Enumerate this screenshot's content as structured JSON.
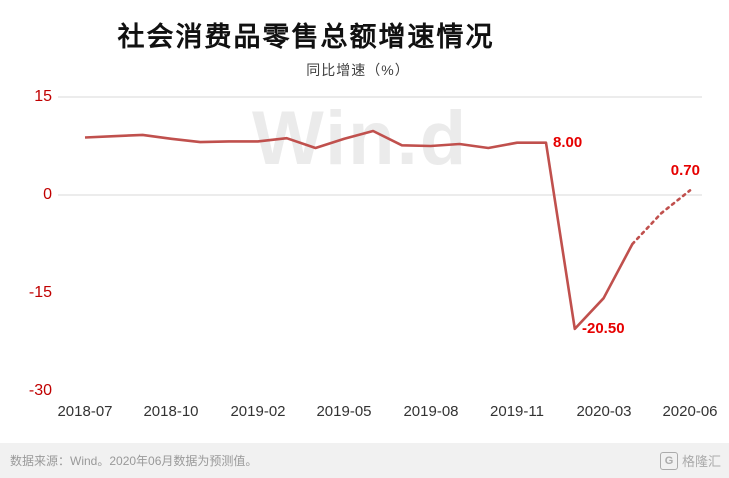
{
  "title": "社会消费品零售总额增速情况",
  "subtitle": "同比增速（%）",
  "watermark": "Win.d",
  "footer": {
    "source_note": "数据来源：Wind。2020年06月数据为预测值。",
    "logo_icon_letter": "G",
    "logo_text": "格隆汇"
  },
  "colors": {
    "line": "#c0504d",
    "data_label": "#e60000",
    "y_axis_text": "#c00000",
    "x_axis_text": "#333333",
    "grid": "#d9d9d9",
    "watermark": "#ebebeb",
    "footer_bg": "#f1f1f1",
    "footer_text": "#999999"
  },
  "chart_data": {
    "type": "line",
    "title": "社会消费品零售总额增速情况",
    "ylabel": "同比增速（%）",
    "x": [
      "2018-07",
      "2018-08",
      "2018-09",
      "2018-10",
      "2018-11",
      "2018-12",
      "2019-02",
      "2019-03",
      "2019-04",
      "2019-05",
      "2019-06",
      "2019-07",
      "2019-08",
      "2019-09",
      "2019-10",
      "2019-11",
      "2019-12",
      "2020-02",
      "2020-03",
      "2020-04",
      "2020-05",
      "2020-06"
    ],
    "values": [
      8.8,
      9.0,
      9.2,
      8.6,
      8.1,
      8.2,
      8.2,
      8.7,
      7.2,
      8.6,
      9.8,
      7.6,
      7.5,
      7.8,
      7.2,
      8.0,
      8.0,
      -20.5,
      -15.8,
      -7.5,
      -2.8,
      0.7
    ],
    "dashed_from_index": 19,
    "x_tick_labels": [
      "2018-07",
      "2018-10",
      "2019-02",
      "2019-05",
      "2019-08",
      "2019-11",
      "2020-03",
      "2020-06"
    ],
    "x_tick_indices": [
      0,
      3,
      6,
      9,
      12,
      15,
      18,
      21
    ],
    "y_ticks": [
      15,
      0,
      -15,
      -30
    ],
    "grid_lines": [
      15,
      0
    ],
    "ylim": [
      -30,
      15
    ],
    "annotations": [
      {
        "label": "8.00",
        "index": 16,
        "placement": "right"
      },
      {
        "label": "-20.50",
        "index": 17,
        "placement": "right"
      },
      {
        "label": "0.70",
        "index": 21,
        "placement": "above"
      }
    ],
    "note": "2020年06月数据为预测值"
  }
}
